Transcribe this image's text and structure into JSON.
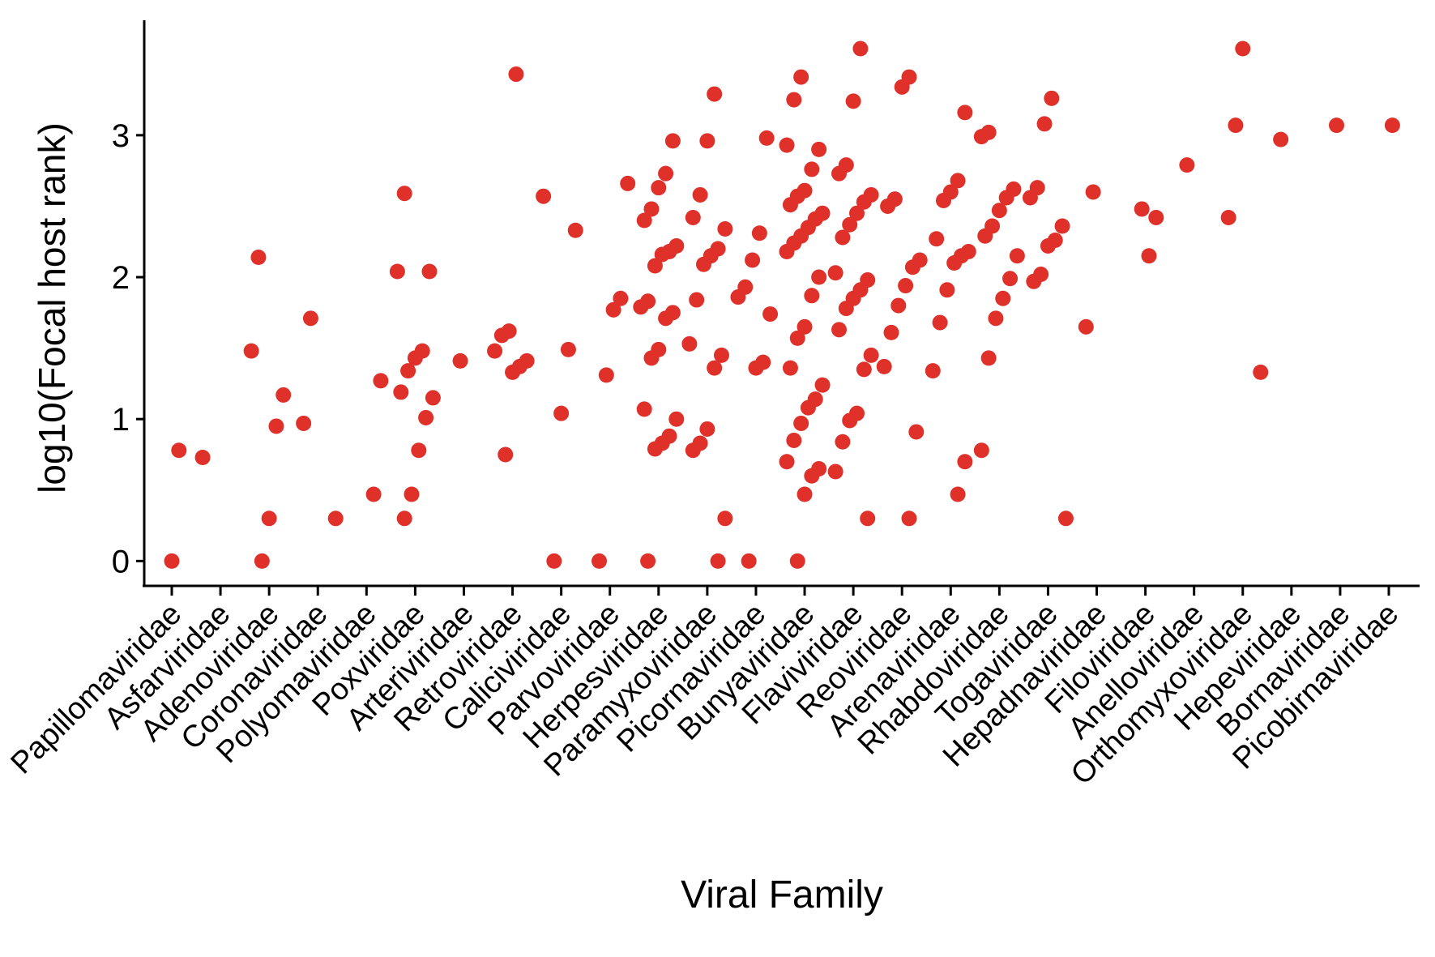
{
  "chart_data": {
    "type": "strip",
    "x_label": "Viral Family",
    "y_label": "log10(Focal host rank)",
    "categories": [
      "Papillomaviridae",
      "Asfarviridae",
      "Adenoviridae",
      "Coronaviridae",
      "Polyomaviridae",
      "Poxviridae",
      "Arteriviridae",
      "Retroviridae",
      "Caliciviridae",
      "Parvoviridae",
      "Herpesviridae",
      "Paramyxoviridae",
      "Picornaviridae",
      "Bunyaviridae",
      "Flaviviridae",
      "Reoviridae",
      "Arenaviridae",
      "Rhabdoviridae",
      "Togaviridae",
      "Hepadnaviridae",
      "Filoviridae",
      "Anelloviridae",
      "Orthomyxoviridae",
      "Hepeviridae",
      "Bornaviridae",
      "Picobirnaviridae"
    ],
    "ylim": [
      -0.175,
      3.81
    ],
    "yticks": [
      0,
      1,
      2,
      3
    ],
    "series": [
      {
        "color": "#e0302a",
        "x": [
          "Papillomaviridae",
          "Papillomaviridae",
          "Asfarviridae",
          "Adenoviridae",
          "Adenoviridae",
          "Adenoviridae",
          "Adenoviridae",
          "Adenoviridae",
          "Adenoviridae",
          "Coronaviridae",
          "Coronaviridae",
          "Coronaviridae",
          "Polyomaviridae",
          "Polyomaviridae",
          "Poxviridae",
          "Poxviridae",
          "Poxviridae",
          "Poxviridae",
          "Poxviridae",
          "Poxviridae",
          "Poxviridae",
          "Poxviridae",
          "Poxviridae",
          "Poxviridae",
          "Poxviridae",
          "Poxviridae",
          "Arteriviridae",
          "Retroviridae",
          "Retroviridae",
          "Retroviridae",
          "Retroviridae",
          "Retroviridae",
          "Retroviridae",
          "Retroviridae",
          "Retroviridae",
          "Caliciviridae",
          "Caliciviridae",
          "Caliciviridae",
          "Caliciviridae",
          "Caliciviridae",
          "Parvoviridae",
          "Parvoviridae",
          "Parvoviridae",
          "Parvoviridae",
          "Parvoviridae",
          "Herpesviridae",
          "Herpesviridae",
          "Herpesviridae",
          "Herpesviridae",
          "Herpesviridae",
          "Herpesviridae",
          "Herpesviridae",
          "Herpesviridae",
          "Herpesviridae",
          "Herpesviridae",
          "Herpesviridae",
          "Herpesviridae",
          "Herpesviridae",
          "Herpesviridae",
          "Herpesviridae",
          "Herpesviridae",
          "Herpesviridae",
          "Herpesviridae",
          "Herpesviridae",
          "Herpesviridae",
          "Herpesviridae",
          "Paramyxoviridae",
          "Paramyxoviridae",
          "Paramyxoviridae",
          "Paramyxoviridae",
          "Paramyxoviridae",
          "Paramyxoviridae",
          "Paramyxoviridae",
          "Paramyxoviridae",
          "Paramyxoviridae",
          "Paramyxoviridae",
          "Paramyxoviridae",
          "Paramyxoviridae",
          "Paramyxoviridae",
          "Paramyxoviridae",
          "Paramyxoviridae",
          "Paramyxoviridae",
          "Paramyxoviridae",
          "Picornaviridae",
          "Picornaviridae",
          "Picornaviridae",
          "Picornaviridae",
          "Picornaviridae",
          "Picornaviridae",
          "Picornaviridae",
          "Picornaviridae",
          "Picornaviridae",
          "Bunyaviridae",
          "Bunyaviridae",
          "Bunyaviridae",
          "Bunyaviridae",
          "Bunyaviridae",
          "Bunyaviridae",
          "Bunyaviridae",
          "Bunyaviridae",
          "Bunyaviridae",
          "Bunyaviridae",
          "Bunyaviridae",
          "Bunyaviridae",
          "Bunyaviridae",
          "Bunyaviridae",
          "Bunyaviridae",
          "Bunyaviridae",
          "Bunyaviridae",
          "Bunyaviridae",
          "Bunyaviridae",
          "Bunyaviridae",
          "Bunyaviridae",
          "Bunyaviridae",
          "Bunyaviridae",
          "Bunyaviridae",
          "Bunyaviridae",
          "Bunyaviridae",
          "Bunyaviridae",
          "Bunyaviridae",
          "Bunyaviridae",
          "Flaviviridae",
          "Flaviviridae",
          "Flaviviridae",
          "Flaviviridae",
          "Flaviviridae",
          "Flaviviridae",
          "Flaviviridae",
          "Flaviviridae",
          "Flaviviridae",
          "Flaviviridae",
          "Flaviviridae",
          "Flaviviridae",
          "Flaviviridae",
          "Flaviviridae",
          "Flaviviridae",
          "Flaviviridae",
          "Flaviviridae",
          "Flaviviridae",
          "Flaviviridae",
          "Flaviviridae",
          "Flaviviridae",
          "Flaviviridae",
          "Reoviridae",
          "Reoviridae",
          "Reoviridae",
          "Reoviridae",
          "Reoviridae",
          "Reoviridae",
          "Reoviridae",
          "Reoviridae",
          "Reoviridae",
          "Reoviridae",
          "Reoviridae",
          "Reoviridae",
          "Arenaviridae",
          "Arenaviridae",
          "Arenaviridae",
          "Arenaviridae",
          "Arenaviridae",
          "Arenaviridae",
          "Arenaviridae",
          "Arenaviridae",
          "Arenaviridae",
          "Arenaviridae",
          "Arenaviridae",
          "Arenaviridae",
          "Arenaviridae",
          "Rhabdoviridae",
          "Rhabdoviridae",
          "Rhabdoviridae",
          "Rhabdoviridae",
          "Rhabdoviridae",
          "Rhabdoviridae",
          "Rhabdoviridae",
          "Rhabdoviridae",
          "Rhabdoviridae",
          "Rhabdoviridae",
          "Rhabdoviridae",
          "Rhabdoviridae",
          "Rhabdoviridae",
          "Togaviridae",
          "Togaviridae",
          "Togaviridae",
          "Togaviridae",
          "Togaviridae",
          "Togaviridae",
          "Togaviridae",
          "Togaviridae",
          "Togaviridae",
          "Togaviridae",
          "Hepadnaviridae",
          "Hepadnaviridae",
          "Filoviridae",
          "Filoviridae",
          "Filoviridae",
          "Anelloviridae",
          "Orthomyxoviridae",
          "Orthomyxoviridae",
          "Orthomyxoviridae",
          "Orthomyxoviridae",
          "Hepeviridae",
          "Bornaviridae",
          "Picobirnaviridae"
        ],
        "values": [
          0.78,
          0,
          0.73,
          2.14,
          1.48,
          1.17,
          0.95,
          0.3,
          0,
          1.71,
          0.97,
          0.3,
          1.27,
          0.47,
          2.59,
          2.04,
          2.04,
          1.48,
          1.43,
          1.34,
          1.19,
          1.15,
          1.01,
          0.78,
          0.47,
          0.3,
          1.41,
          3.43,
          1.62,
          1.59,
          1.48,
          1.41,
          1.37,
          1.33,
          0.75,
          2.57,
          2.33,
          1.49,
          1.04,
          0,
          2.66,
          1.85,
          1.77,
          1.31,
          0,
          2.96,
          2.73,
          2.63,
          2.48,
          2.4,
          2.22,
          2.18,
          2.16,
          2.08,
          1.83,
          1.79,
          1.75,
          1.71,
          1.49,
          1.43,
          1.07,
          1.0,
          0.88,
          0.83,
          0.79,
          0,
          3.29,
          2.96,
          2.58,
          2.42,
          2.34,
          2.2,
          2.15,
          2.09,
          1.84,
          1.53,
          1.45,
          1.36,
          0.93,
          0.83,
          0.78,
          0.3,
          0,
          2.98,
          2.31,
          2.12,
          1.93,
          1.86,
          1.74,
          1.4,
          1.36,
          0,
          3.41,
          3.25,
          2.93,
          2.9,
          2.76,
          2.61,
          2.57,
          2.51,
          2.45,
          2.41,
          2.35,
          2.29,
          2.24,
          2.18,
          2.0,
          1.87,
          1.65,
          1.57,
          1.36,
          1.24,
          1.14,
          1.08,
          0.97,
          0.85,
          0.7,
          0.65,
          0.6,
          0.47,
          0,
          3.61,
          3.24,
          2.79,
          2.73,
          2.58,
          2.53,
          2.45,
          2.37,
          2.28,
          2.03,
          1.98,
          1.91,
          1.85,
          1.78,
          1.63,
          1.45,
          1.35,
          1.04,
          0.99,
          0.84,
          0.63,
          0.3,
          3.41,
          3.34,
          2.55,
          2.5,
          2.12,
          2.07,
          1.94,
          1.8,
          1.61,
          1.37,
          0.91,
          0.3,
          3.16,
          2.68,
          2.6,
          2.54,
          2.27,
          2.18,
          2.15,
          2.1,
          1.91,
          1.68,
          1.34,
          0.7,
          0.47,
          3.02,
          2.99,
          2.62,
          2.56,
          2.47,
          2.36,
          2.29,
          2.15,
          1.99,
          1.85,
          1.71,
          1.43,
          0.78,
          3.26,
          3.08,
          2.63,
          2.56,
          2.36,
          2.26,
          2.22,
          2.02,
          1.97,
          0.3,
          2.6,
          1.65,
          2.42,
          2.15,
          2.48,
          2.79,
          3.61,
          3.07,
          2.42,
          1.33,
          2.97,
          3.07,
          3.07
        ]
      }
    ]
  }
}
